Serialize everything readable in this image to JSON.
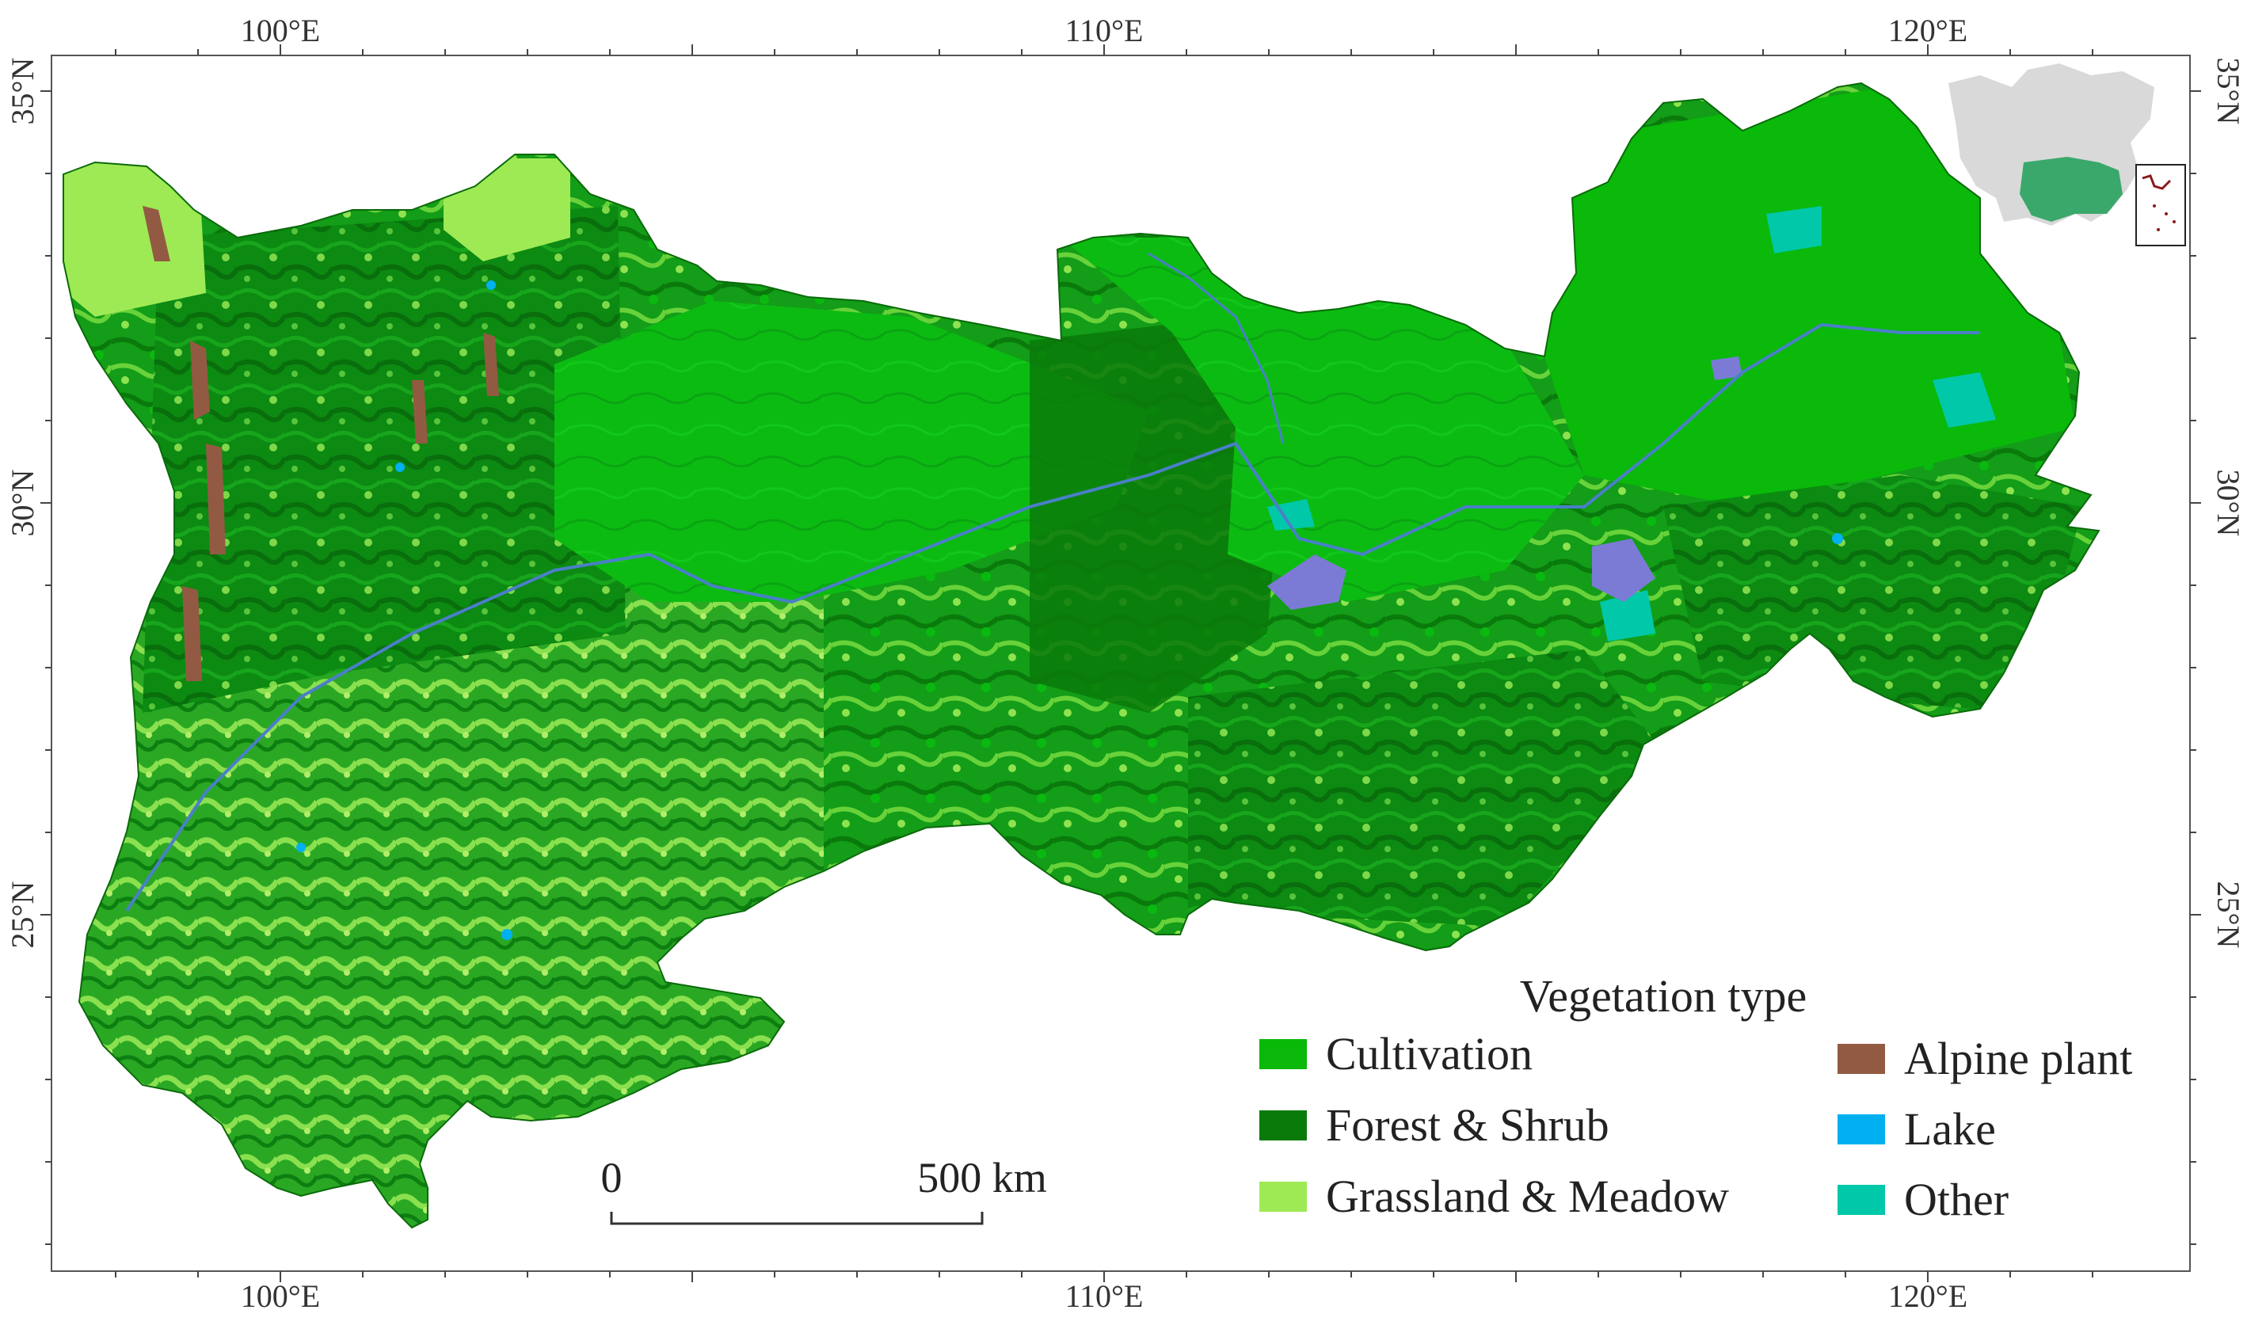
{
  "axes": {
    "top": [
      {
        "label": "100°E",
        "lon": 100
      },
      {
        "label": "110°E",
        "lon": 110
      },
      {
        "label": "120°E",
        "lon": 120
      }
    ],
    "bottom": [
      {
        "label": "100°E",
        "lon": 100
      },
      {
        "label": "110°E",
        "lon": 110
      },
      {
        "label": "120°E",
        "lon": 120
      }
    ],
    "left": [
      {
        "label": "35°N",
        "lat": 35
      },
      {
        "label": "30°N",
        "lat": 30
      },
      {
        "label": "25°N",
        "lat": 25
      }
    ],
    "right": [
      {
        "label": "35°N",
        "lat": 35
      },
      {
        "label": "30°N",
        "lat": 30
      },
      {
        "label": "25°N",
        "lat": 25
      }
    ]
  },
  "legend": {
    "title": "Vegetation type",
    "items": [
      {
        "label": "Cultivation",
        "color": "#0ab90a"
      },
      {
        "label": "Forest & Shrub",
        "color": "#0a7a0a"
      },
      {
        "label": "Grassland & Meadow",
        "color": "#9eea55"
      },
      {
        "label": "Alpine plant",
        "color": "#935a43"
      },
      {
        "label": "Lake",
        "color": "#00b0f0"
      },
      {
        "label": "Other",
        "color": "#00c8a8"
      }
    ]
  },
  "scale_bar": {
    "start_label": "0",
    "end_label": "500 km"
  },
  "colors": {
    "cultivation": "#0ab90a",
    "forest": "#0a7a0a",
    "grassland": "#9eea55",
    "alpine": "#935a43",
    "lake": "#00b0f0",
    "other": "#00c8a8",
    "river": "#4a7fc8",
    "wetland": "#7b7bd6",
    "inset_china": "#d9d9d9",
    "inset_region": "#3aa86a"
  }
}
